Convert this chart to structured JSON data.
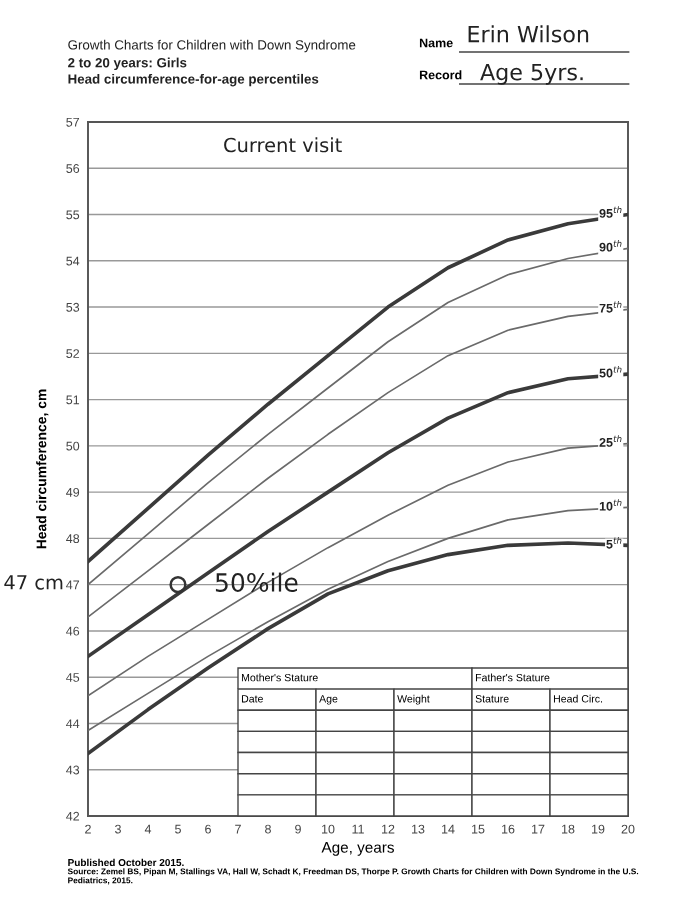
{
  "chart_data": {
    "type": "line",
    "title": "Growth Charts for Children with Down Syndrome",
    "subtitle": "2 to 20 years: Girls\nHead circumference-for-age percentiles",
    "xlabel": "Age, years",
    "ylabel": "Head circumference, cm",
    "x": [
      2,
      4,
      6,
      8,
      10,
      12,
      14,
      16,
      18,
      20
    ],
    "series": [
      {
        "name": "95$^{th}$",
        "color": "#3a3a3a",
        "values": [
          47.5,
          48.65,
          49.8,
          50.9,
          51.95,
          53.0,
          53.85,
          54.45,
          54.8,
          55.0
        ]
      },
      {
        "name": "90$^{th}$",
        "color": "#6a6a6a",
        "values": [
          47.0,
          48.1,
          49.2,
          50.25,
          51.25,
          52.25,
          53.1,
          53.7,
          54.05,
          54.27
        ]
      },
      {
        "name": "75$^{th}$",
        "color": "#6a6a6a",
        "values": [
          46.3,
          47.3,
          48.3,
          49.3,
          50.25,
          51.15,
          51.95,
          52.5,
          52.8,
          52.95
        ]
      },
      {
        "name": "50$^{th}$",
        "color": "#3a3a3a",
        "values": [
          45.45,
          46.35,
          47.25,
          48.15,
          49.0,
          49.85,
          50.6,
          51.15,
          51.45,
          51.55
        ]
      },
      {
        "name": "25$^{th}$",
        "color": "#6a6a6a",
        "values": [
          44.6,
          45.45,
          46.25,
          47.05,
          47.8,
          48.5,
          49.15,
          49.65,
          49.95,
          50.05
        ]
      },
      {
        "name": "10$^{th}$",
        "color": "#6a6a6a",
        "values": [
          43.85,
          44.65,
          45.45,
          46.2,
          46.9,
          47.5,
          48.0,
          48.4,
          48.6,
          48.67
        ]
      },
      {
        "name": "5$^{th}$",
        "color": "#3a3a3a",
        "values": [
          43.35,
          44.3,
          45.2,
          46.05,
          46.8,
          47.3,
          47.65,
          47.85,
          47.9,
          47.85
        ]
      },
      {
        "type": "scatter",
        "x": [
          5
        ],
        "values": [
          47
        ],
        "color": "#333333",
        "marker": "circle"
      }
    ],
    "xlim": [
      2,
      20
    ],
    "xticks": [
      2,
      3,
      4,
      5,
      6,
      7,
      8,
      9,
      10,
      11,
      12,
      13,
      14,
      15,
      16,
      17,
      18,
      19,
      20
    ],
    "ylim": [
      42,
      57
    ],
    "yticks": [
      42,
      43,
      44,
      45,
      46,
      47,
      48,
      49,
      50,
      51,
      52,
      53,
      54,
      55,
      56,
      57
    ],
    "grid": "y",
    "annotations": [
      "Current visit",
      "50%ile",
      "47 cm",
      "Name",
      "Erin Wilson",
      "Record",
      "Age 5yrs.",
      "Mother's Stature",
      "Father's Stature",
      "Date",
      "Age",
      "Weight",
      "Stature",
      "Head Circ.",
      "Published October 2015.",
      "Source: Zemel BS, Pipan M, Stallings VA, Hall W, Schadt K, Freedman DS, Thorpe P. Growth Charts for Children with Down Syndrome in the U.S. Pediatrics, 2015."
    ]
  }
}
